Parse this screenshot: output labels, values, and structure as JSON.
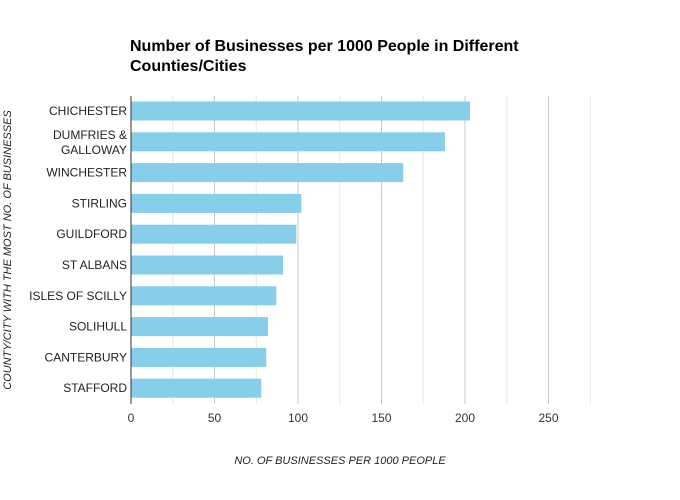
{
  "chart_data": {
    "type": "bar",
    "orientation": "horizontal",
    "title": "Number of Businesses per 1000 People in Different Counties/Cities",
    "xlabel": "NO. OF BUSINESSES PER 1000 PEOPLE",
    "ylabel": "COUNTY/CITY WITH THE MOST NO. OF BUSINESSES",
    "categories": [
      "CHICHESTER",
      "DUMFRIES & GALLOWAY",
      "WINCHESTER",
      "STIRLING",
      "GUILDFORD",
      "ST ALBANS",
      "ISLES OF SCILLY",
      "SOLIHULL",
      "CANTERBURY",
      "STAFFORD"
    ],
    "values": [
      203,
      188,
      163,
      102,
      99,
      91,
      87,
      82,
      81,
      78
    ],
    "xticks": [
      0,
      50,
      100,
      150,
      200,
      250
    ],
    "xlim": [
      0,
      275
    ],
    "grid": true,
    "bar_color": "#87CEEB"
  }
}
